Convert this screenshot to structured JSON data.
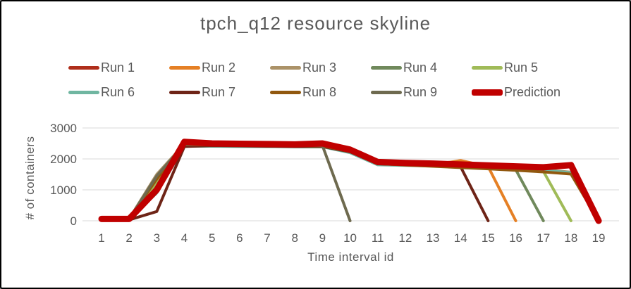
{
  "window": {
    "background": "#FFFFFF",
    "border_color": "#000000",
    "text_color": "#595959",
    "gridline_color": "#D9D9D9"
  },
  "chart_data": {
    "type": "line",
    "title": "tpch_q12 resource skyline",
    "xlabel": "Time interval id",
    "ylabel": "# of containers",
    "x": [
      1,
      2,
      3,
      4,
      5,
      6,
      7,
      8,
      9,
      10,
      11,
      12,
      13,
      14,
      15,
      16,
      17,
      18,
      19
    ],
    "xticklabels": [
      "1",
      "2",
      "3",
      "4",
      "5",
      "6",
      "7",
      "8",
      "9",
      "10",
      "11",
      "12",
      "13",
      "14",
      "15",
      "16",
      "17",
      "18",
      "19"
    ],
    "yticks": [
      0,
      1000,
      2000,
      3000
    ],
    "yticklabels": [
      "0",
      "1000",
      "2000",
      "3000"
    ],
    "ylim": [
      0,
      3000
    ],
    "grid": true,
    "legend_position": "top-two-rows",
    "legend_rows": [
      [
        "Run 1",
        "Run 2",
        "Run 3",
        "Run 4",
        "Run 5"
      ],
      [
        "Run 6",
        "Run 7",
        "Run 8",
        "Run 9",
        "Prediction"
      ]
    ],
    "series": [
      {
        "name": "Run 1",
        "color": "#AF2E1B",
        "width": 4,
        "values": [
          60,
          60,
          1200,
          2450,
          2440,
          2430,
          2420,
          2420,
          2420,
          2230,
          1840,
          1820,
          1800,
          1780,
          1760,
          1730,
          1710,
          1760,
          0
        ]
      },
      {
        "name": "Run 2",
        "color": "#E58025",
        "width": 4,
        "values": [
          60,
          60,
          1050,
          2430,
          2430,
          2420,
          2410,
          2410,
          2410,
          2220,
          1830,
          1810,
          1800,
          1950,
          1750,
          0,
          null,
          null,
          null
        ]
      },
      {
        "name": "Run 3",
        "color": "#AB9268",
        "width": 4,
        "values": [
          60,
          60,
          1500,
          2480,
          2460,
          2450,
          2440,
          2430,
          2430,
          2220,
          1820,
          1800,
          1780,
          1750,
          1720,
          1690,
          1650,
          1570,
          0
        ]
      },
      {
        "name": "Run 4",
        "color": "#70895C",
        "width": 4,
        "values": [
          60,
          60,
          1150,
          2420,
          2420,
          2410,
          2400,
          2400,
          2400,
          2210,
          1820,
          1800,
          1780,
          1760,
          1740,
          1650,
          0,
          null,
          null
        ]
      },
      {
        "name": "Run 5",
        "color": "#A0BB58",
        "width": 4,
        "values": [
          60,
          60,
          1250,
          2440,
          2430,
          2420,
          2420,
          2410,
          2410,
          2210,
          1830,
          1810,
          1790,
          1770,
          1750,
          1700,
          1600,
          0,
          null
        ]
      },
      {
        "name": "Run 6",
        "color": "#70B6A1",
        "width": 4,
        "values": [
          60,
          60,
          900,
          2410,
          2410,
          2400,
          2400,
          2390,
          2390,
          2200,
          1810,
          1790,
          1770,
          1740,
          1710,
          1680,
          1640,
          1550,
          0
        ]
      },
      {
        "name": "Run 7",
        "color": "#6E2417",
        "width": 4,
        "values": [
          60,
          30,
          300,
          2400,
          2430,
          2420,
          2410,
          2400,
          2400,
          2230,
          1840,
          1810,
          1790,
          1750,
          0,
          null,
          null,
          null,
          null
        ]
      },
      {
        "name": "Run 8",
        "color": "#91580F",
        "width": 4,
        "values": [
          60,
          60,
          1350,
          2460,
          2450,
          2440,
          2430,
          2420,
          2420,
          2240,
          1850,
          1800,
          1760,
          1720,
          1680,
          1630,
          1580,
          1510,
          0
        ]
      },
      {
        "name": "Run 9",
        "color": "#6E6A4F",
        "width": 4,
        "values": [
          60,
          60,
          1450,
          2470,
          2460,
          2450,
          2440,
          2430,
          2430,
          0,
          null,
          null,
          null,
          null,
          null,
          null,
          null,
          null,
          null
        ]
      },
      {
        "name": "Prediction",
        "color": "#C00000",
        "width": 9,
        "values": [
          60,
          60,
          1000,
          2550,
          2500,
          2490,
          2480,
          2470,
          2500,
          2300,
          1900,
          1870,
          1850,
          1820,
          1790,
          1760,
          1730,
          1800,
          0
        ]
      }
    ]
  }
}
